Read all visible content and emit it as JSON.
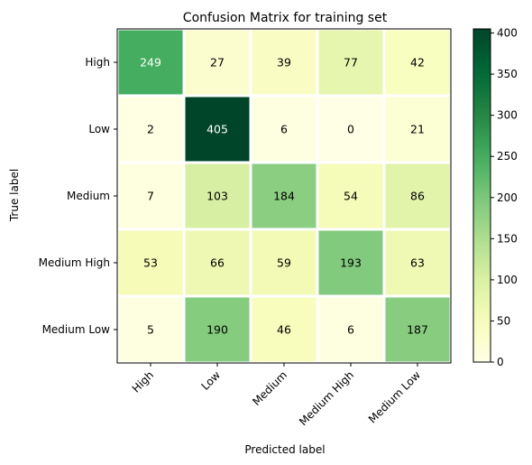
{
  "chart_data": {
    "type": "heatmap",
    "title": "Confusion Matrix for training set",
    "xlabel": "Predicted label",
    "ylabel": "True label",
    "x_categories": [
      "High",
      "Low",
      "Medium",
      "Medium High",
      "Medium Low"
    ],
    "y_categories": [
      "High",
      "Low",
      "Medium",
      "Medium High",
      "Medium Low"
    ],
    "values": [
      [
        249,
        27,
        39,
        77,
        42
      ],
      [
        2,
        405,
        6,
        0,
        21
      ],
      [
        7,
        103,
        184,
        54,
        86
      ],
      [
        53,
        66,
        59,
        193,
        63
      ],
      [
        5,
        190,
        46,
        6,
        187
      ]
    ],
    "colormap": "YlGn",
    "vmin": 0,
    "vmax": 405,
    "colorbar_ticks": [
      0,
      50,
      100,
      150,
      200,
      250,
      300,
      350,
      400
    ],
    "cell_text_colors": {
      "dark": "#ffffff",
      "light": "#000000"
    }
  }
}
